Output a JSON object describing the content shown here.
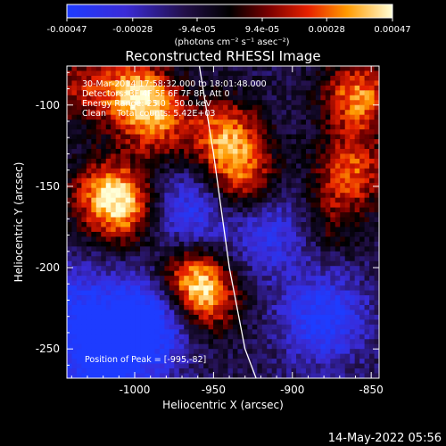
{
  "colorbar": {
    "tick_labels": [
      "-0.00047",
      "-0.00028",
      "-9.4e-05",
      "9.4e-05",
      "0.00028",
      "0.00047"
    ],
    "tick_values": [
      -0.00047,
      -0.00028,
      -9.4e-05,
      9.4e-05,
      0.00028,
      0.00047
    ],
    "range": [
      -0.00047,
      0.00047
    ],
    "unit_label": "(photons cm⁻² s⁻¹ asec⁻²)"
  },
  "info": {
    "time_range": "30-Mar-2014 17:58:32.000 to 18:01:48.000",
    "detectors": "Detectors: 3F 4F 5F 6F 7F 8F, Att 0",
    "energy": "Energy Range: 25.0 - 50.0 keV",
    "method_counts": "Clean    Total counts: 5.42E+03",
    "peak": "Position of Peak = [-995,-82]"
  },
  "footer": {
    "date": "14-May-2022 05:56"
  },
  "colors": {
    "negative": "#1428ff",
    "zero": "#000000",
    "positive_low": "#c00000",
    "positive_mid": "#ff7a00",
    "positive_high": "#ffffc8"
  },
  "chart_data": {
    "type": "heatmap",
    "title": "Reconstructed RHESSI Image",
    "xlabel": "Heliocentric X (arcsec)",
    "ylabel": "Heliocentric Y (arcsec)",
    "xlim": [
      -1043,
      -845
    ],
    "ylim": [
      -268,
      -76
    ],
    "xticks": [
      -1000,
      -950,
      -900,
      -850
    ],
    "xtick_labels": [
      "-1000",
      "-950",
      "-900",
      "-850"
    ],
    "yticks": [
      -250,
      -200,
      -150,
      -100
    ],
    "ytick_labels": [
      "-250",
      "-200",
      "-150",
      "-100"
    ],
    "colormap": "blue-black-red-yellow-white",
    "value_range": [
      -0.00047,
      0.00047
    ],
    "peak_position": [
      -995,
      -82
    ],
    "limb_curve": [
      [
        -959,
        -76
      ],
      [
        -950,
        -130
      ],
      [
        -940,
        -200
      ],
      [
        -930,
        -250
      ],
      [
        -923,
        -268
      ]
    ],
    "sources": [
      {
        "x": -1035,
        "y": -90,
        "value": 0.00025
      },
      {
        "x": -1000,
        "y": -92,
        "value": 0.00045
      },
      {
        "x": -985,
        "y": -112,
        "value": 0.00032
      },
      {
        "x": -1018,
        "y": -155,
        "value": 0.0004
      },
      {
        "x": -1003,
        "y": -165,
        "value": 0.00035
      },
      {
        "x": -942,
        "y": -120,
        "value": 0.00044
      },
      {
        "x": -930,
        "y": -148,
        "value": 0.00038
      },
      {
        "x": -965,
        "y": -205,
        "value": 0.00042
      },
      {
        "x": -955,
        "y": -220,
        "value": 0.00035
      },
      {
        "x": -858,
        "y": -95,
        "value": 0.00045
      },
      {
        "x": -862,
        "y": -140,
        "value": 0.00036
      },
      {
        "x": -878,
        "y": -170,
        "value": 0.00022
      },
      {
        "x": -990,
        "y": -232,
        "value": -0.00045
      },
      {
        "x": -1020,
        "y": -262,
        "value": -0.0004
      },
      {
        "x": -968,
        "y": -168,
        "value": -0.00032
      },
      {
        "x": -880,
        "y": -232,
        "value": -0.00035
      },
      {
        "x": -912,
        "y": -175,
        "value": -0.0003
      },
      {
        "x": -1040,
        "y": -225,
        "value": -0.00028
      }
    ]
  }
}
